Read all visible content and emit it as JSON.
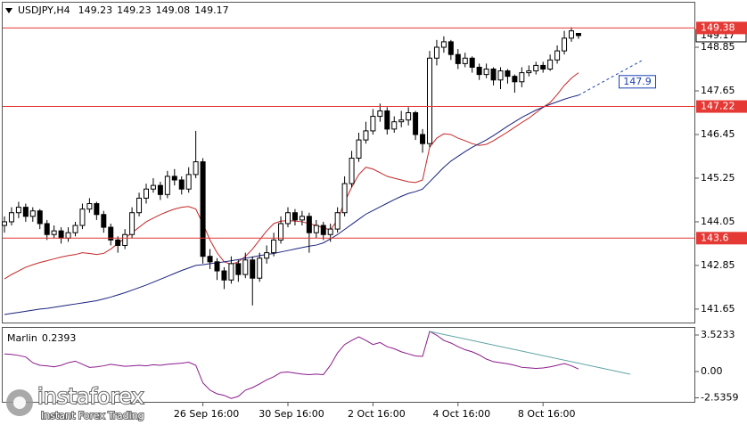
{
  "chart_data": [
    {
      "type": "candlestick",
      "title": "USDJPY,H4",
      "categories": [
        null,
        null,
        null,
        null,
        null,
        null,
        null,
        null,
        null,
        null,
        null,
        null,
        null,
        null,
        null,
        null,
        null,
        null,
        null,
        null,
        null,
        null,
        null,
        null,
        null,
        null,
        null,
        null,
        "26 Sep 16:00",
        null,
        null,
        null,
        null,
        null,
        null,
        null,
        null,
        null,
        null,
        null,
        "30 Sep 16:00",
        null,
        null,
        null,
        null,
        null,
        null,
        null,
        null,
        null,
        null,
        null,
        "2 Oct 16:00",
        null,
        null,
        null,
        null,
        null,
        null,
        null,
        null,
        null,
        null,
        null,
        "4 Oct 16:00",
        null,
        null,
        null,
        null,
        null,
        null,
        null,
        null,
        null,
        null,
        null,
        "8 Oct 16:00",
        null,
        null,
        null,
        null,
        null
      ],
      "ohlc": [
        [
          143.95,
          144.2,
          143.75,
          144.05
        ],
        [
          144.05,
          144.45,
          143.95,
          144.3
        ],
        [
          144.3,
          144.6,
          144.15,
          144.45
        ],
        [
          144.45,
          144.55,
          144.05,
          144.2
        ],
        [
          144.2,
          144.45,
          144.05,
          144.35
        ],
        [
          144.35,
          144.4,
          143.85,
          144.0
        ],
        [
          144.0,
          144.1,
          143.55,
          143.7
        ],
        [
          143.7,
          143.95,
          143.6,
          143.8
        ],
        [
          143.8,
          143.9,
          143.45,
          143.6
        ],
        [
          143.6,
          143.9,
          143.5,
          143.75
        ],
        [
          143.75,
          144.05,
          143.65,
          143.95
        ],
        [
          143.95,
          144.55,
          143.85,
          144.4
        ],
        [
          144.4,
          144.7,
          144.3,
          144.55
        ],
        [
          144.55,
          144.6,
          144.1,
          144.25
        ],
        [
          144.25,
          144.35,
          143.75,
          143.9
        ],
        [
          143.9,
          144.0,
          143.4,
          143.55
        ],
        [
          143.55,
          143.65,
          143.2,
          143.4
        ],
        [
          143.4,
          143.85,
          143.3,
          143.7
        ],
        [
          143.7,
          144.45,
          143.6,
          144.3
        ],
        [
          144.3,
          144.85,
          144.2,
          144.7
        ],
        [
          144.7,
          145.1,
          144.55,
          144.95
        ],
        [
          144.95,
          145.25,
          144.85,
          145.05
        ],
        [
          145.05,
          145.15,
          144.65,
          144.8
        ],
        [
          144.8,
          145.45,
          144.7,
          145.3
        ],
        [
          145.3,
          145.5,
          145.05,
          145.2
        ],
        [
          145.2,
          145.3,
          144.8,
          144.95
        ],
        [
          144.95,
          145.55,
          144.85,
          145.35
        ],
        [
          145.35,
          146.55,
          145.25,
          145.7
        ],
        [
          145.7,
          145.8,
          142.9,
          143.1
        ],
        [
          143.1,
          143.3,
          142.75,
          142.95
        ],
        [
          142.95,
          143.05,
          142.45,
          142.7
        ],
        [
          142.7,
          142.8,
          142.2,
          142.45
        ],
        [
          142.45,
          143.1,
          142.35,
          142.9
        ],
        [
          142.9,
          143.0,
          142.4,
          142.6
        ],
        [
          142.6,
          143.2,
          142.5,
          143.0
        ],
        [
          143.0,
          143.1,
          141.75,
          142.5
        ],
        [
          142.5,
          143.2,
          142.4,
          143.05
        ],
        [
          143.05,
          143.4,
          142.9,
          143.2
        ],
        [
          143.2,
          143.75,
          143.1,
          143.55
        ],
        [
          143.55,
          144.2,
          143.45,
          144.0
        ],
        [
          144.0,
          144.45,
          143.9,
          144.3
        ],
        [
          144.3,
          144.4,
          143.95,
          144.1
        ],
        [
          144.1,
          144.35,
          143.95,
          144.2
        ],
        [
          144.2,
          144.3,
          143.2,
          143.75
        ],
        [
          143.75,
          144.1,
          143.6,
          143.95
        ],
        [
          143.95,
          144.05,
          143.55,
          143.7
        ],
        [
          143.7,
          144.0,
          143.5,
          143.85
        ],
        [
          143.85,
          144.45,
          143.75,
          144.3
        ],
        [
          144.3,
          145.3,
          144.2,
          145.1
        ],
        [
          145.1,
          146.0,
          145.0,
          145.8
        ],
        [
          145.8,
          146.5,
          145.7,
          146.3
        ],
        [
          146.3,
          146.8,
          146.2,
          146.55
        ],
        [
          146.55,
          147.15,
          146.45,
          146.95
        ],
        [
          146.95,
          147.3,
          146.8,
          147.1
        ],
        [
          147.1,
          147.2,
          146.45,
          146.6
        ],
        [
          146.6,
          146.95,
          146.5,
          146.8
        ],
        [
          146.8,
          147.1,
          146.65,
          146.85
        ],
        [
          146.85,
          147.2,
          146.7,
          147.05
        ],
        [
          147.05,
          147.1,
          146.3,
          146.45
        ],
        [
          146.45,
          146.6,
          145.95,
          146.2
        ],
        [
          146.2,
          148.75,
          146.1,
          148.55
        ],
        [
          148.55,
          149.05,
          148.35,
          148.85
        ],
        [
          148.85,
          149.15,
          148.7,
          149.0
        ],
        [
          149.0,
          149.05,
          148.5,
          148.65
        ],
        [
          148.65,
          148.8,
          148.25,
          148.4
        ],
        [
          148.4,
          148.7,
          148.3,
          148.55
        ],
        [
          148.55,
          148.6,
          148.15,
          148.3
        ],
        [
          148.3,
          148.4,
          147.95,
          148.1
        ],
        [
          148.1,
          148.4,
          148.0,
          148.25
        ],
        [
          148.25,
          148.3,
          147.8,
          147.95
        ],
        [
          147.95,
          148.3,
          147.7,
          148.2
        ],
        [
          148.2,
          148.25,
          147.85,
          148.05
        ],
        [
          148.05,
          148.1,
          147.6,
          147.9
        ],
        [
          147.9,
          148.3,
          147.75,
          148.15
        ],
        [
          148.15,
          148.35,
          148.05,
          148.2
        ],
        [
          148.2,
          148.45,
          148.1,
          148.35
        ],
        [
          148.35,
          148.45,
          148.15,
          148.25
        ],
        [
          148.25,
          148.65,
          148.2,
          148.5
        ],
        [
          148.5,
          148.9,
          148.4,
          148.75
        ],
        [
          148.75,
          149.3,
          148.65,
          149.1
        ],
        [
          149.1,
          149.4,
          149.0,
          149.3
        ],
        [
          149.23,
          149.23,
          149.08,
          149.17
        ]
      ],
      "lines": [
        {
          "color": "#c62828",
          "values": [
            142.48,
            142.6,
            142.7,
            142.8,
            142.87,
            142.93,
            142.98,
            143.03,
            143.08,
            143.12,
            143.15,
            143.2,
            143.18,
            143.15,
            143.18,
            143.3,
            143.45,
            143.6,
            143.75,
            143.9,
            144.05,
            144.15,
            144.25,
            144.33,
            144.4,
            144.45,
            144.47,
            144.4,
            144.0,
            143.55,
            143.2,
            142.95,
            142.88,
            142.95,
            143.1,
            143.3,
            143.55,
            143.8,
            144.0,
            144.07,
            144.08,
            144.07,
            144.05,
            144.0,
            143.95,
            143.88,
            143.83,
            144.1,
            144.6,
            145.0,
            145.35,
            145.55,
            145.5,
            145.4,
            145.3,
            145.25,
            145.2,
            145.15,
            145.13,
            145.2,
            146.1,
            146.35,
            146.47,
            146.45,
            146.35,
            146.28,
            146.2,
            146.15,
            146.18,
            146.28,
            146.4,
            146.52,
            146.65,
            146.78,
            146.9,
            147.05,
            147.2,
            147.33,
            147.55,
            147.8,
            148.0,
            148.15
          ]
        },
        {
          "color": "#1a237e",
          "values": [
            141.5,
            141.53,
            141.56,
            141.59,
            141.62,
            141.65,
            141.67,
            141.7,
            141.73,
            141.76,
            141.79,
            141.82,
            141.85,
            141.88,
            141.93,
            141.98,
            142.04,
            142.1,
            142.17,
            142.24,
            142.31,
            142.39,
            142.47,
            142.55,
            142.63,
            142.71,
            142.78,
            142.85,
            142.87,
            142.9,
            142.92,
            142.95,
            142.98,
            143.01,
            143.05,
            143.08,
            143.12,
            143.15,
            143.18,
            143.22,
            143.26,
            143.3,
            143.34,
            143.38,
            143.41,
            143.47,
            143.58,
            143.7,
            143.84,
            143.98,
            144.12,
            144.26,
            144.36,
            144.46,
            144.56,
            144.66,
            144.75,
            144.83,
            144.88,
            144.95,
            145.15,
            145.35,
            145.55,
            145.72,
            145.85,
            145.98,
            146.1,
            146.2,
            146.3,
            146.42,
            146.55,
            146.68,
            146.8,
            146.92,
            147.02,
            147.12,
            147.2,
            147.28,
            147.35,
            147.42,
            147.48,
            147.53
          ]
        }
      ],
      "levels": [
        {
          "value": 149.38,
          "color": "#e53935"
        },
        {
          "value": 147.22,
          "color": "#e53935"
        },
        {
          "value": 143.6,
          "color": "#e53935"
        }
      ],
      "projection": {
        "x": [
          81,
          89.9
        ],
        "y": [
          147.53,
          148.48
        ],
        "color": "#1a3fb0",
        "label": 147.9
      },
      "ylim": [
        141.28,
        150.1
      ],
      "yticks": [
        141.65,
        142.85,
        144.05,
        145.25,
        146.45,
        147.65,
        148.85
      ]
    },
    {
      "type": "line",
      "title": "Marlin",
      "color": "#8b1a8b",
      "values": [
        1.7,
        1.65,
        1.55,
        1.4,
        0.85,
        0.6,
        0.55,
        0.45,
        0.6,
        0.85,
        1.0,
        0.7,
        0.4,
        0.45,
        0.55,
        0.7,
        0.6,
        0.5,
        0.55,
        0.6,
        0.55,
        0.65,
        0.6,
        0.7,
        0.75,
        0.8,
        0.9,
        0.6,
        -1.1,
        -1.8,
        -2.15,
        -2.3,
        -2.6,
        -2.4,
        -1.8,
        -1.55,
        -1.2,
        -0.8,
        -0.5,
        -0.1,
        -0.05,
        -0.15,
        -0.25,
        -0.3,
        -0.25,
        -0.3,
        0.6,
        1.8,
        2.6,
        3.0,
        3.35,
        3.0,
        2.6,
        2.8,
        2.4,
        2.2,
        1.9,
        1.7,
        1.5,
        1.46,
        3.87,
        3.5,
        3.0,
        2.75,
        2.4,
        2.1,
        1.9,
        1.6,
        1.2,
        0.95,
        0.85,
        0.75,
        0.6,
        0.4,
        0.35,
        0.3,
        0.34,
        0.45,
        0.6,
        0.77,
        0.55,
        0.2393
      ],
      "trendline": {
        "x": [
          60,
          88.3
        ],
        "y": [
          3.87,
          -0.26
        ],
        "color": "#5fa3a3"
      },
      "ylim": [
        -2.84,
        4.21
      ],
      "yticks": [
        -2.5359,
        {
          "value": 0,
          "label": "0.00"
        },
        3.5233
      ]
    }
  ],
  "watermark": {
    "brand": "instaforex",
    "tagline": "Instant Forex Trading"
  }
}
